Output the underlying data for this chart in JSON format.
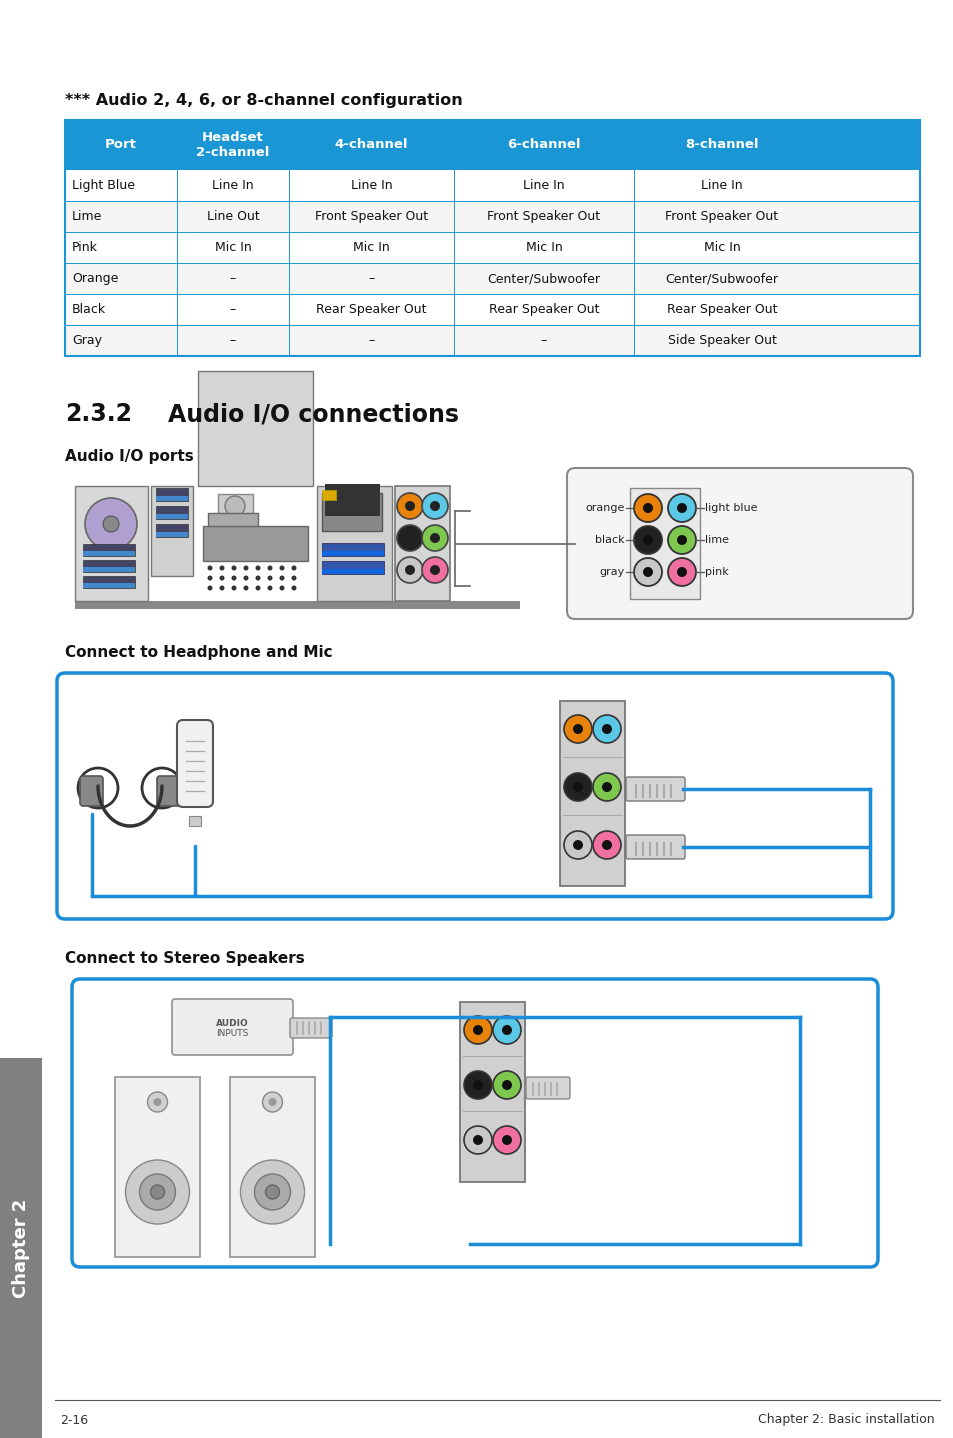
{
  "title_table": "*** Audio 2, 4, 6, or 8-channel configuration",
  "table_header": [
    "Port",
    "Headset\n2-channel",
    "4-channel",
    "6-channel",
    "8-channel"
  ],
  "table_rows": [
    [
      "Light Blue",
      "Line In",
      "Line In",
      "Line In",
      "Line In"
    ],
    [
      "Lime",
      "Line Out",
      "Front Speaker Out",
      "Front Speaker Out",
      "Front Speaker Out"
    ],
    [
      "Pink",
      "Mic In",
      "Mic In",
      "Mic In",
      "Mic In"
    ],
    [
      "Orange",
      "–",
      "–",
      "Center/Subwoofer",
      "Center/Subwoofer"
    ],
    [
      "Black",
      "–",
      "Rear Speaker Out",
      "Rear Speaker Out",
      "Rear Speaker Out"
    ],
    [
      "Gray",
      "–",
      "–",
      "–",
      "Side Speaker Out"
    ]
  ],
  "header_bg": "#1a96d4",
  "header_fg": "#ffffff",
  "border_color": "#1a96d4",
  "subtitle1": "Audio I/O ports",
  "subtitle2": "Connect to Headphone and Mic",
  "subtitle3": "Connect to Stereo Speakers",
  "footer_left": "2-16",
  "footer_right": "Chapter 2: Basic installation",
  "sidebar_text": "Chapter 2",
  "sidebar_bg": "#808080",
  "page_bg": "#ffffff"
}
